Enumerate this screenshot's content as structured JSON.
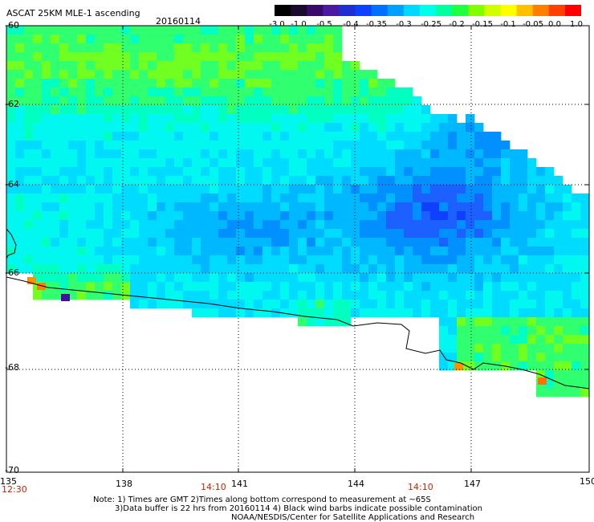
{
  "header": {
    "title": "ASCAT 25KM MLE-1 ascending",
    "date": "20160114"
  },
  "colorbar": {
    "ticks": [
      "-3.0",
      "-1.0",
      "-0.5",
      "-0.4",
      "-0.35",
      "-0.3",
      "-0.25",
      "-0.2",
      "-0.15",
      "-0.1",
      "-0.05",
      "0.0",
      "1.0"
    ],
    "colors": [
      "#000000",
      "#1a0a2e",
      "#3a0a6a",
      "#4a1aa0",
      "#2030d0",
      "#1040ff",
      "#0070ff",
      "#00a0ff",
      "#00d8ff",
      "#00ffe8",
      "#00ffa0",
      "#20ff40",
      "#80ff00",
      "#d0ff00",
      "#ffff00",
      "#ffc000",
      "#ff8000",
      "#ff4000",
      "#ff0000"
    ]
  },
  "map": {
    "lat_labels": [
      "-60",
      "-62",
      "-64",
      "-66",
      "-68",
      "-70"
    ],
    "lon_labels": [
      "135",
      "138",
      "141",
      "144",
      "147",
      "150"
    ],
    "time_labels": [
      "12:30",
      "14:10",
      "14:10"
    ]
  },
  "notes": {
    "line1": "Note: 1) Times are GMT 2)Times along bottom correspond to measurement at ~65S",
    "line2": "3)Data buffer is 22 hrs from 20160114 4) Black wind barbs indicate possible contamination",
    "line3": "NOAA/NESDIS/Center for Satellite Applications and Research"
  }
}
